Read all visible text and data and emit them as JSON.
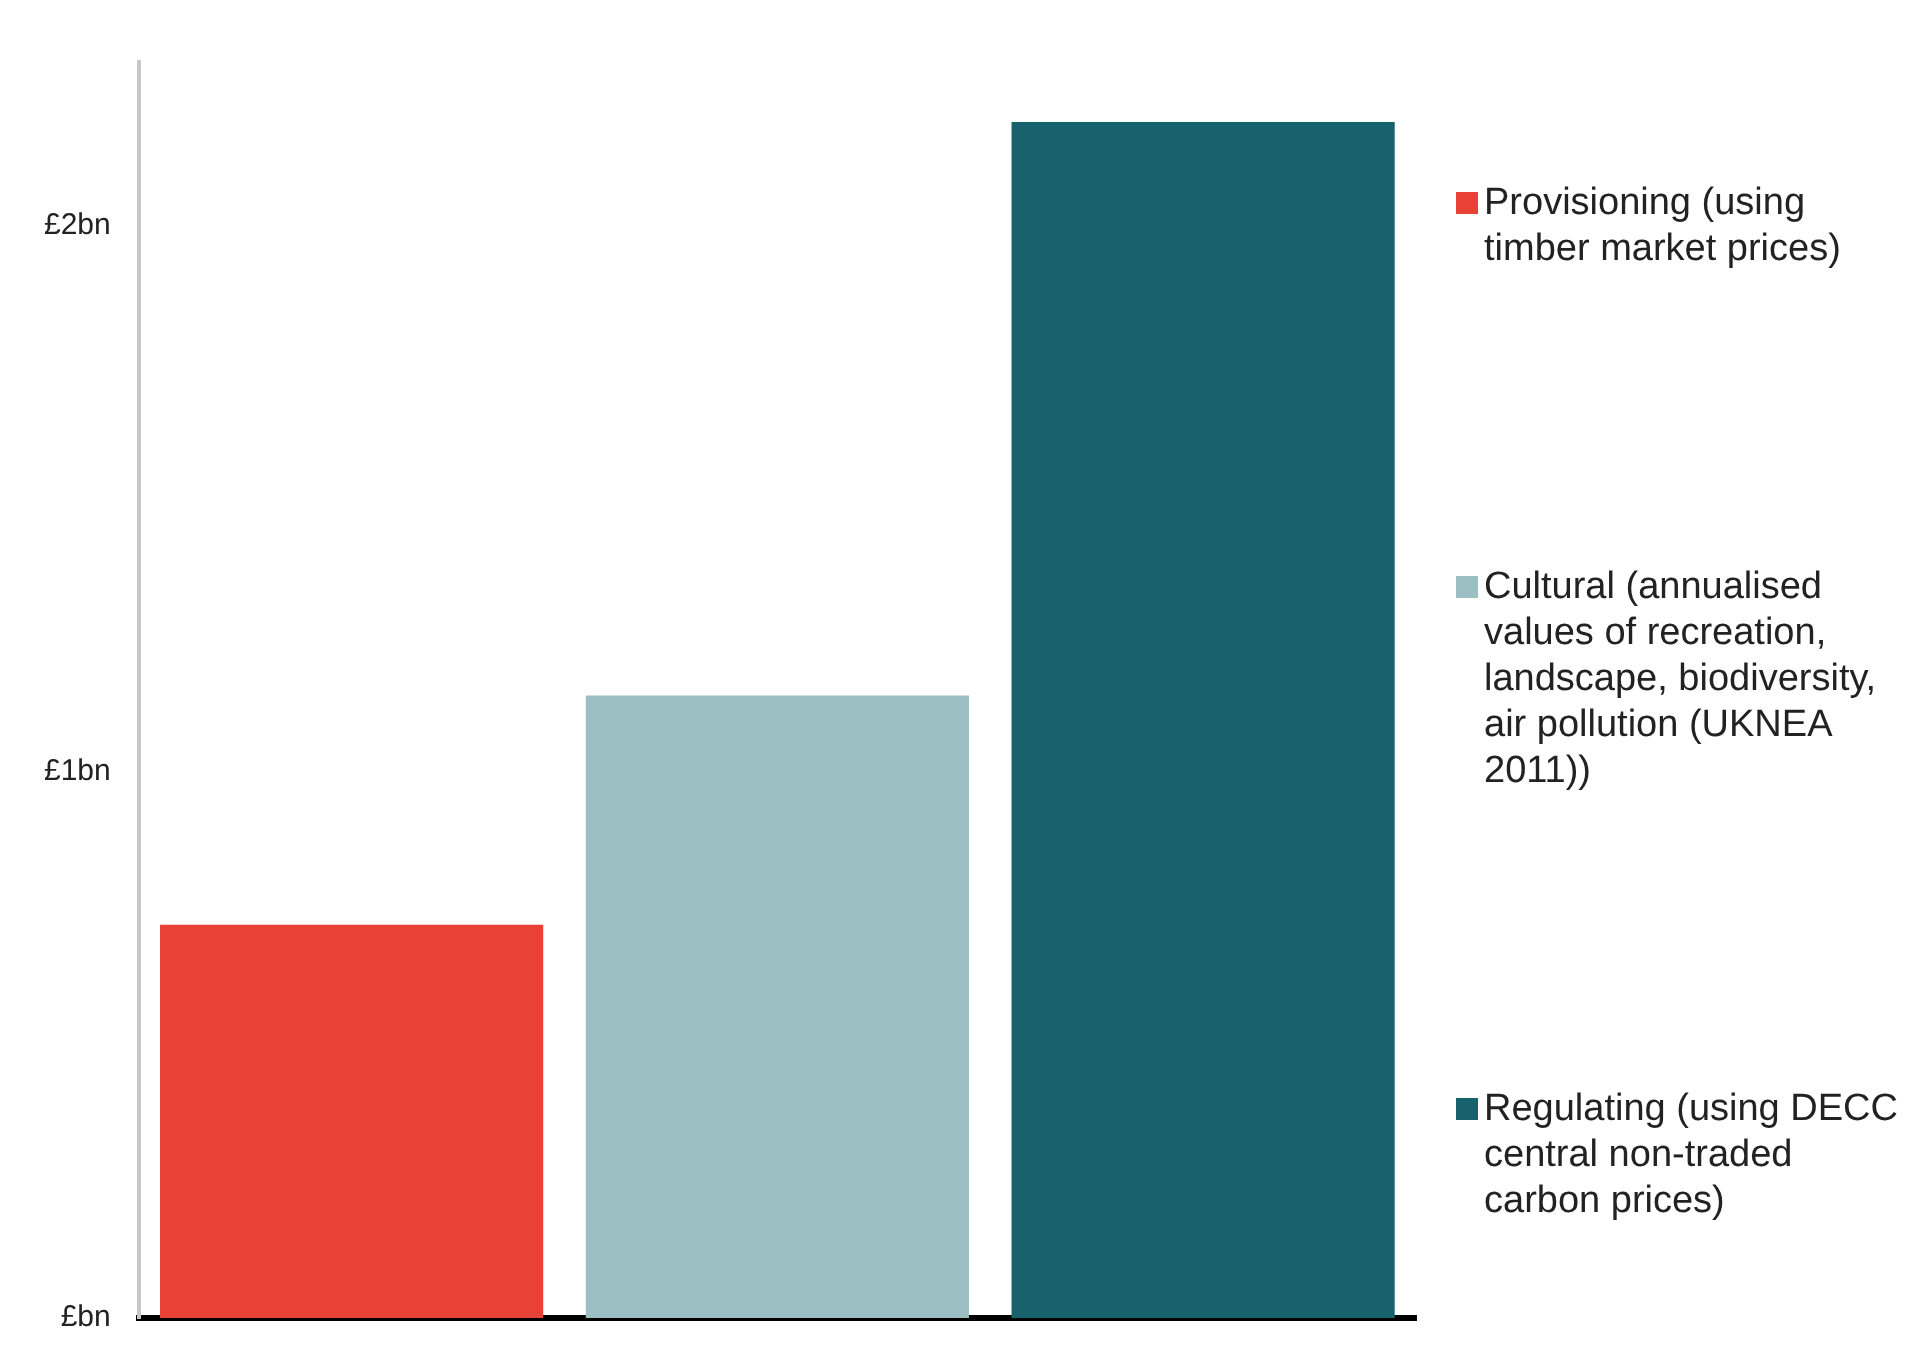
{
  "chart_data": {
    "type": "bar",
    "categories": [
      null,
      null,
      null
    ],
    "series": [
      {
        "name": "Provisioning (using timber market prices)",
        "color": "#e84135",
        "values": [
          0.72,
          null,
          null
        ]
      },
      {
        "name": "Cultural (annualised values of recreation, landscape, biodiversity, air pollution (UKNEA 2011))",
        "color": "#9bbfc3",
        "values": [
          null,
          1.14,
          null
        ]
      },
      {
        "name": "Regulating (using DECC  central non-traded carbon prices)",
        "color": "#17626d",
        "values": [
          null,
          null,
          2.19
        ]
      }
    ],
    "ylim": [
      0,
      2.3
    ],
    "yticks": [
      {
        "value": 0,
        "label": "£bn"
      },
      {
        "value": 1,
        "label": "£1bn"
      },
      {
        "value": 2,
        "label": "£2bn"
      }
    ],
    "grid": false,
    "legend": "right"
  }
}
